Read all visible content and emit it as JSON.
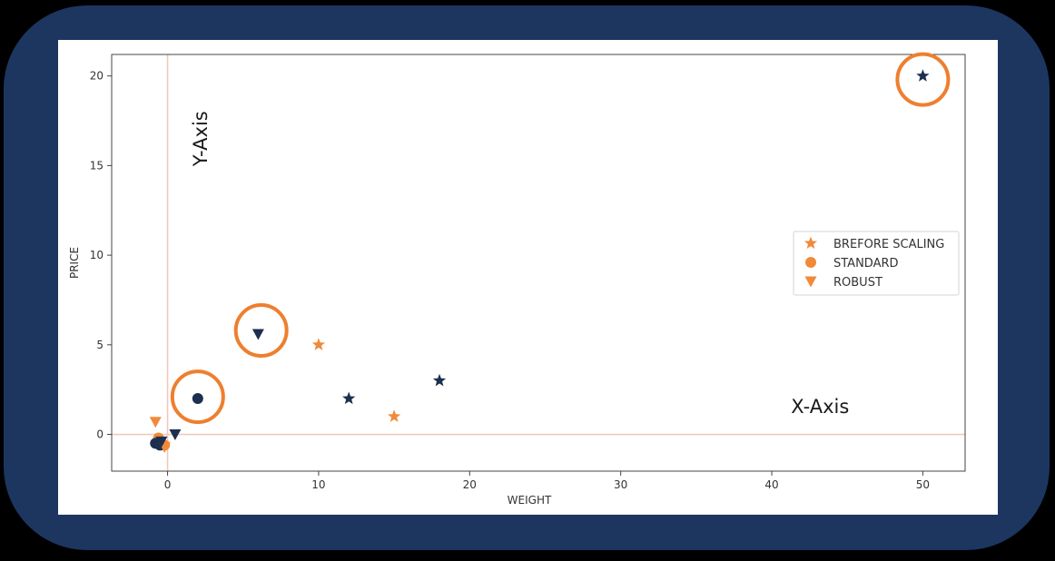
{
  "chart_data": {
    "type": "scatter",
    "xlabel": "WEIGHT",
    "ylabel": "PRICE",
    "xlim": [
      -3.7,
      52.8
    ],
    "ylim": [
      -2.05,
      21.2
    ],
    "xticks": [
      0,
      10,
      20,
      30,
      40,
      50
    ],
    "yticks": [
      0,
      5,
      10,
      15,
      20
    ],
    "grid": false,
    "legend_position": "center-right",
    "reference_lines": {
      "x": 0,
      "y": 0
    },
    "series": [
      {
        "name": "BREFORE SCALING",
        "marker": "star",
        "points": [
          {
            "x": 10,
            "y": 5,
            "color": "#f08a3a"
          },
          {
            "x": 15,
            "y": 1,
            "color": "#f08a3a"
          },
          {
            "x": 12,
            "y": 2,
            "color": "#1d2f4f"
          },
          {
            "x": 18,
            "y": 3,
            "color": "#1d2f4f"
          },
          {
            "x": 50,
            "y": 20,
            "color": "#1d2f4f"
          }
        ]
      },
      {
        "name": "STANDARD",
        "marker": "circle",
        "points": [
          {
            "x": -0.6,
            "y": -0.2,
            "color": "#f08a3a"
          },
          {
            "x": -0.2,
            "y": -0.6,
            "color": "#f08a3a"
          },
          {
            "x": -0.8,
            "y": -0.5,
            "color": "#1d2f4f"
          },
          {
            "x": -0.5,
            "y": -0.6,
            "color": "#1d2f4f"
          },
          {
            "x": 2,
            "y": 2,
            "color": "#1d2f4f"
          }
        ]
      },
      {
        "name": "ROBUST",
        "marker": "triangle-down",
        "points": [
          {
            "x": -0.8,
            "y": 0.7,
            "color": "#f08a3a"
          },
          {
            "x": -0.2,
            "y": -0.7,
            "color": "#f08a3a"
          },
          {
            "x": -0.4,
            "y": -0.4,
            "color": "#1d2f4f"
          },
          {
            "x": 0.5,
            "y": 0,
            "color": "#1d2f4f"
          },
          {
            "x": 6,
            "y": 5.6,
            "color": "#1d2f4f"
          }
        ]
      }
    ],
    "annotations": {
      "text": [
        {
          "text": "Y-Axis",
          "x": 2.6,
          "y": 16.5,
          "rotate": -90
        },
        {
          "text": "X-Axis",
          "x": 43.2,
          "y": 1.2
        }
      ],
      "highlight_circles": [
        {
          "x": 50,
          "y": 19.8
        },
        {
          "x": 6.2,
          "y": 5.8
        },
        {
          "x": 2,
          "y": 2.1
        }
      ]
    }
  },
  "colors": {
    "frame": "#1d3660",
    "orange": "#f08a3a",
    "navy": "#1d2f4f",
    "highlight_ring": "#ee7f2f",
    "reference_line": "#efc9bd"
  }
}
